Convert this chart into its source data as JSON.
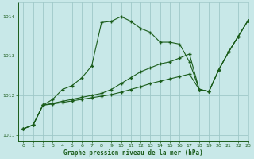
{
  "xlabel": "Graphe pression niveau de la mer (hPa)",
  "xlim": [
    -0.5,
    23
  ],
  "ylim": [
    1010.85,
    1014.35
  ],
  "yticks": [
    1011,
    1012,
    1013,
    1014
  ],
  "xticks": [
    0,
    1,
    2,
    3,
    4,
    5,
    6,
    7,
    8,
    9,
    10,
    11,
    12,
    13,
    14,
    15,
    16,
    17,
    18,
    19,
    20,
    21,
    22,
    23
  ],
  "bg_color": "#c8e8e8",
  "grid_color": "#9fc8c8",
  "line_color": "#1a5c1a",
  "series1_y": [
    1011.15,
    1011.25,
    1011.75,
    1011.9,
    1012.15,
    1012.25,
    1012.45,
    1012.75,
    1013.85,
    1013.88,
    1014.0,
    1013.88,
    1013.7,
    1013.6,
    1013.35,
    1013.35,
    1013.3,
    1012.85,
    1012.15,
    1012.1,
    1012.65,
    1013.1,
    1013.5,
    1013.9
  ],
  "series2_y": [
    1011.15,
    1011.25,
    1011.75,
    1011.8,
    1011.85,
    1011.9,
    1011.95,
    1012.0,
    1012.05,
    1012.15,
    1012.3,
    1012.45,
    1012.6,
    1012.7,
    1012.8,
    1012.85,
    1012.95,
    1013.05,
    1012.15,
    1012.1,
    1012.65,
    1013.1,
    1013.5,
    1013.9
  ],
  "series3_y": [
    1011.15,
    1011.25,
    1011.75,
    1011.78,
    1011.82,
    1011.86,
    1011.9,
    1011.94,
    1011.98,
    1012.02,
    1012.08,
    1012.15,
    1012.22,
    1012.3,
    1012.36,
    1012.42,
    1012.48,
    1012.54,
    1012.15,
    1012.1,
    1012.65,
    1013.1,
    1013.5,
    1013.9
  ]
}
